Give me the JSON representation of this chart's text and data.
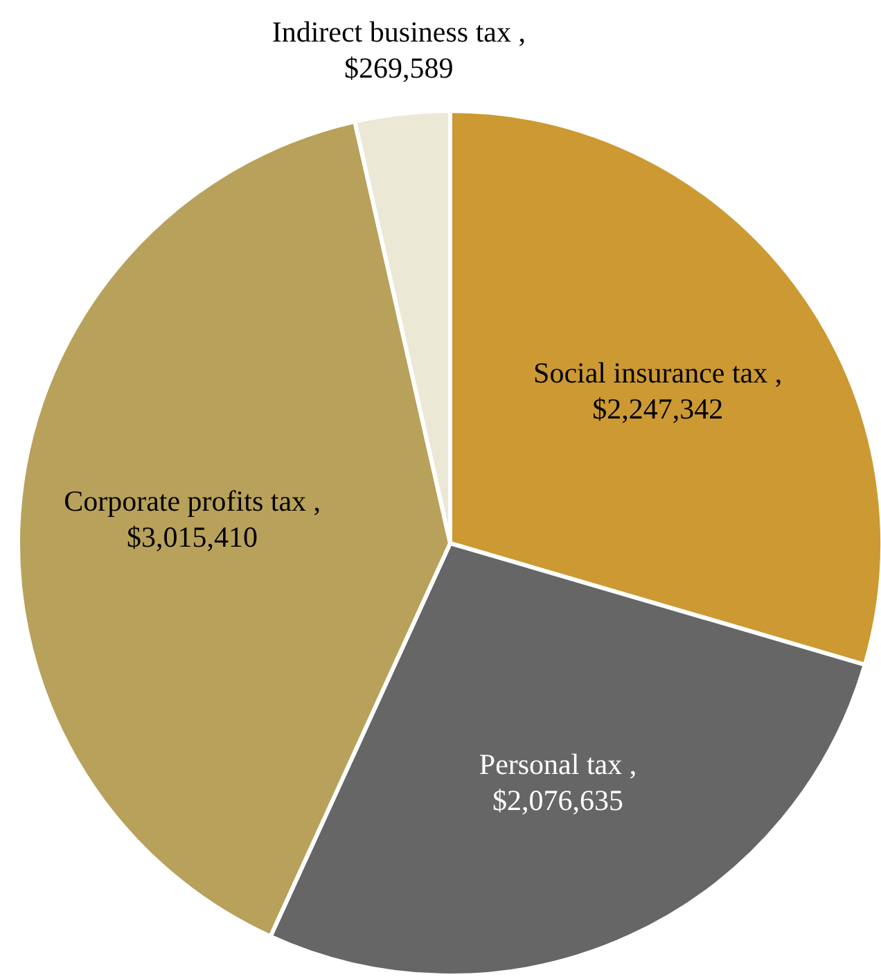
{
  "chart_data": {
    "type": "pie",
    "categories": [
      "Social insurance tax",
      "Personal tax",
      "Corporate profits tax",
      "Indirect business tax"
    ],
    "values": [
      2247342,
      2076635,
      3015410,
      269589
    ],
    "value_labels": [
      ", $2,247,342",
      ", $2,076,635",
      ", $3,015,410",
      ", $269,589"
    ],
    "colors": [
      "#cc9933",
      "#666666",
      "#b8a15a",
      "#ece8d6"
    ]
  }
}
